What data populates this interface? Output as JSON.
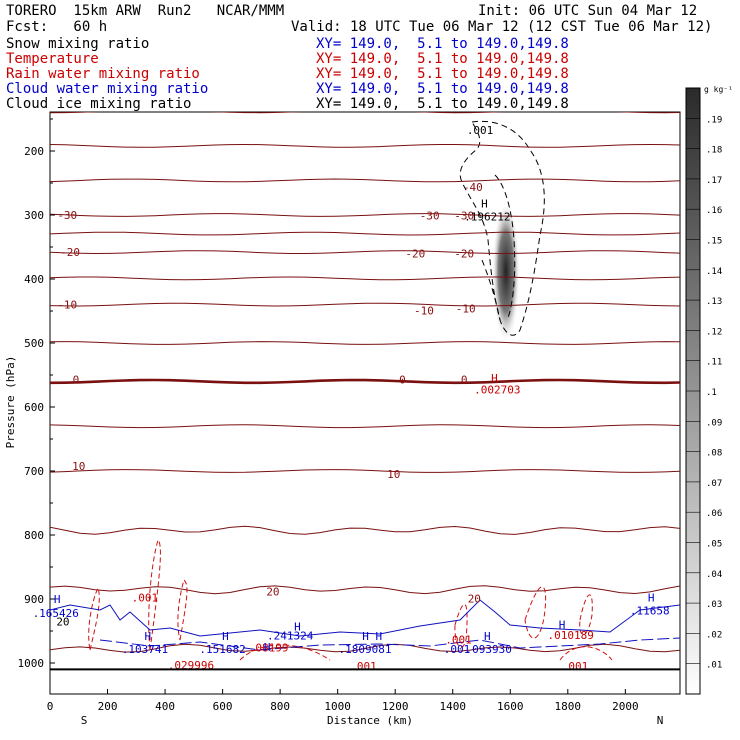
{
  "header": {
    "title": "TORERO  15km ARW  Run2   NCAR/MMM",
    "init": "Init: 06 UTC Sun 04 Mar 12",
    "fcst": "Fcst:   60 h",
    "valid": "Valid: 18 UTC Tue 06 Mar 12 (12 CST Tue 06 Mar 12)"
  },
  "fields": [
    {
      "name": "Snow mixing ratio",
      "xy": "XY= 149.0,  5.1 to 149.0,149.8",
      "color": "#000000"
    },
    {
      "name": "Temperature",
      "xy": "XY= 149.0,  5.1 to 149.0,149.8",
      "color": "#cc0000"
    },
    {
      "name": "Rain water mixing ratio",
      "xy": "XY= 149.0,  5.1 to 149.0,149.8",
      "color": "#cc0000"
    },
    {
      "name": "Cloud water mixing ratio",
      "xy": "XY= 149.0,  5.1 to 149.0,149.8",
      "color": "#0000cc"
    },
    {
      "name": "Cloud ice mixing ratio",
      "xy": "XY= 149.0,  5.1 to 149.0,149.8",
      "color": "#000000"
    }
  ],
  "chart_data": {
    "type": "contour",
    "xlabel": "Distance (km)",
    "ylabel": "Pressure (hPa)",
    "xlim": [
      0,
      2190
    ],
    "ylim": [
      1050,
      115
    ],
    "x_ticks": [
      0,
      200,
      400,
      600,
      800,
      1000,
      1200,
      1400,
      1600,
      1800,
      2000
    ],
    "x_tick_labels": [
      "0",
      "200",
      "400",
      "600",
      "800",
      "1000",
      "1200",
      "1400",
      "1600",
      "1800",
      "2000"
    ],
    "y_ticks": [
      200,
      300,
      400,
      500,
      600,
      700,
      800,
      900,
      1000
    ],
    "y_tick_labels": [
      "200",
      "300",
      "400",
      "500",
      "600",
      "700",
      "800",
      "900",
      "1000"
    ],
    "direction_labels": {
      "left": "S",
      "right": "N"
    },
    "colorbar": {
      "units": "g kg⁻¹",
      "levels": [
        0.01,
        0.02,
        0.03,
        0.04,
        0.05,
        0.06,
        0.07,
        0.08,
        0.09,
        0.1,
        0.11,
        0.12,
        0.13,
        0.14,
        0.15,
        0.16,
        0.17,
        0.18,
        0.19
      ],
      "labels": [
        ".01",
        ".02",
        ".03",
        ".04",
        ".05",
        ".06",
        ".07",
        ".08",
        ".09",
        ".1",
        ".11",
        ".12",
        ".13",
        ".14",
        ".15",
        ".16",
        ".17",
        ".18",
        ".19"
      ]
    },
    "temperature_isotherms": [
      {
        "value": -30,
        "pressure": 300
      },
      {
        "value": -20,
        "pressure": 358
      },
      {
        "value": -10,
        "pressure": 440
      },
      {
        "value": 0,
        "pressure": 560
      },
      {
        "value": 10,
        "pressure": 700
      },
      {
        "value": 20,
        "pressure": 885
      }
    ],
    "temperature_labels": [
      {
        "text": "-30",
        "x": 60,
        "p": 300
      },
      {
        "text": "-30",
        "x": 1320,
        "p": 301
      },
      {
        "text": "-30",
        "x": 1440,
        "p": 301
      },
      {
        "text": "-20",
        "x": 70,
        "p": 358
      },
      {
        "text": "-20",
        "x": 1270,
        "p": 360
      },
      {
        "text": "-20",
        "x": 1440,
        "p": 360
      },
      {
        "text": "-10",
        "x": 60,
        "p": 440
      },
      {
        "text": "-10",
        "x": 1300,
        "p": 449
      },
      {
        "text": "-10",
        "x": 1445,
        "p": 446
      },
      {
        "text": "0",
        "x": 90,
        "p": 557
      },
      {
        "text": "0",
        "x": 1225,
        "p": 557
      },
      {
        "text": "0",
        "x": 1440,
        "p": 557
      },
      {
        "text": "10",
        "x": 100,
        "p": 692
      },
      {
        "text": "10",
        "x": 1195,
        "p": 705
      },
      {
        "text": "20",
        "x": 775,
        "p": 888
      },
      {
        "text": "20",
        "x": 1475,
        "p": 899
      },
      {
        "text": "-40",
        "x": 1470,
        "p": 256
      }
    ],
    "annotations": [
      {
        "text": ".001",
        "x": 1495,
        "p": 167,
        "color": "#000000"
      },
      {
        "text": "H",
        "x": 1510,
        "p": 282,
        "color": "#000000"
      },
      {
        "text": ".196212",
        "x": 1520,
        "p": 302,
        "color": "#000000"
      },
      {
        "text": "H",
        "x": 1545,
        "p": 555,
        "color": "#cc0000"
      },
      {
        "text": ".002703",
        "x": 1555,
        "p": 573,
        "color": "#cc0000"
      },
      {
        "text": ".001",
        "x": 330,
        "p": 898,
        "color": "#cc0000"
      },
      {
        "text": ".001",
        "x": 1420,
        "p": 963,
        "color": "#cc0000"
      },
      {
        "text": ".001",
        "x": 1825,
        "p": 1005,
        "color": "#cc0000"
      },
      {
        "text": ".001",
        "x": 1090,
        "p": 1005,
        "color": "#cc0000"
      },
      {
        "text": ".010189",
        "x": 1810,
        "p": 956,
        "color": "#cc0000"
      },
      {
        "text": ".08199",
        "x": 760,
        "p": 976,
        "color": "#cc0000"
      },
      {
        "text": ".029996",
        "x": 490,
        "p": 1003,
        "color": "#cc0000"
      },
      {
        "text": "H",
        "x": 25,
        "p": 900,
        "color": "#0000cc"
      },
      {
        "text": ".165426",
        "x": 20,
        "p": 922,
        "color": "#0000cc"
      },
      {
        "text": "20",
        "x": 45,
        "p": 935,
        "color": "#000000"
      },
      {
        "text": "H",
        "x": 340,
        "p": 958,
        "color": "#0000cc"
      },
      {
        "text": ".103741",
        "x": 330,
        "p": 978,
        "color": "#0000cc"
      },
      {
        "text": "H",
        "x": 610,
        "p": 958,
        "color": "#0000cc"
      },
      {
        "text": ".151682",
        "x": 600,
        "p": 978,
        "color": "#0000cc"
      },
      {
        "text": "H",
        "x": 860,
        "p": 943,
        "color": "#0000cc"
      },
      {
        "text": ".241324",
        "x": 835,
        "p": 957,
        "color": "#0000cc"
      },
      {
        "text": "H",
        "x": 755,
        "p": 975,
        "color": "#0000cc"
      },
      {
        "text": "H H",
        "x": 1120,
        "p": 958,
        "color": "#0000cc"
      },
      {
        "text": ".1809081",
        "x": 1095,
        "p": 978,
        "color": "#0000cc"
      },
      {
        "text": ".001",
        "x": 1415,
        "p": 978,
        "color": "#0000cc"
      },
      {
        "text": "H",
        "x": 1520,
        "p": 958,
        "color": "#0000cc"
      },
      {
        "text": ".093930",
        "x": 1525,
        "p": 978,
        "color": "#0000cc"
      },
      {
        "text": "H",
        "x": 1780,
        "p": 940,
        "color": "#0000cc"
      },
      {
        "text": "H",
        "x": 2090,
        "p": 898,
        "color": "#0000cc"
      },
      {
        "text": ".11658",
        "x": 2085,
        "p": 918,
        "color": "#0000cc"
      }
    ]
  }
}
